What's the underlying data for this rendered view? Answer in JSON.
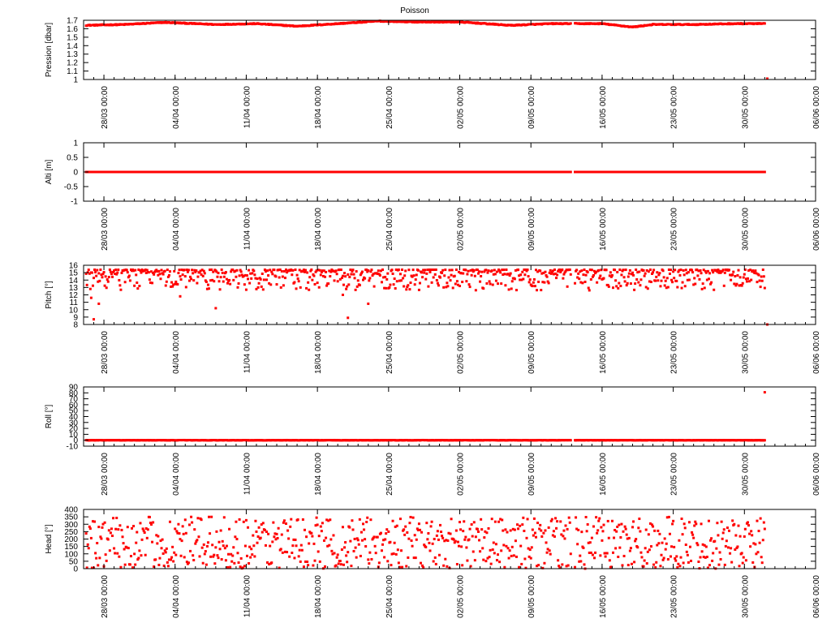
{
  "figure": {
    "title": "Poisson"
  },
  "chart_data": [
    {
      "type": "scatter",
      "ylabel": "Pression [dbar]",
      "ylim": [
        1,
        1.7
      ],
      "yticks": [
        1,
        1.1,
        1.2,
        1.3,
        1.4,
        1.5,
        1.6,
        1.7
      ],
      "grid": false,
      "color": "#ff0000",
      "x_ticks": [
        "28/03 00:00",
        "04/04 00:00",
        "11/04 00:00",
        "18/04 00:00",
        "25/04 00:00",
        "02/05 00:00",
        "09/05 00:00",
        "16/05 00:00",
        "23/05 00:00",
        "30/05 00:00",
        "06/06 00:00"
      ],
      "x_range": [
        "26/03 00:00",
        "06/06 00:00"
      ],
      "data_end": "01/06 00:00",
      "gap": [
        "13/05 00:00",
        "13/05 06:00"
      ],
      "profile": {
        "x": [
          "26/03 00:00",
          "30/03 00:00",
          "03/04 00:00",
          "08/04 00:00",
          "12/04 00:00",
          "16/04 00:00",
          "20/04 00:00",
          "24/04 00:00",
          "28/04 00:00",
          "02/05 00:00",
          "07/05 00:00",
          "11/05 00:00",
          "16/05 00:00",
          "19/05 00:00",
          "21/05 00:00",
          "25/05 00:00",
          "29/05 00:00",
          "01/06 00:00"
        ],
        "y": [
          1.64,
          1.65,
          1.675,
          1.65,
          1.66,
          1.63,
          1.66,
          1.69,
          1.68,
          1.68,
          1.64,
          1.66,
          1.66,
          1.62,
          1.65,
          1.65,
          1.66,
          1.66
        ]
      },
      "noise": 0.005,
      "outliers": [
        {
          "x": "01/06 06:00",
          "y": 1.01
        }
      ]
    },
    {
      "type": "scatter",
      "ylabel": "Alti [m]",
      "ylim": [
        -1,
        1
      ],
      "yticks": [
        -1,
        -0.5,
        0,
        0.5,
        1
      ],
      "grid": false,
      "color": "#ff0000",
      "x_ticks": [
        "28/03 00:00",
        "04/04 00:00",
        "11/04 00:00",
        "18/04 00:00",
        "25/04 00:00",
        "02/05 00:00",
        "09/05 00:00",
        "16/05 00:00",
        "23/05 00:00",
        "30/05 00:00",
        "06/06 00:00"
      ],
      "x_range": [
        "26/03 00:00",
        "06/06 00:00"
      ],
      "data_end": "01/06 00:00",
      "gap": [
        "13/05 00:00",
        "13/05 06:00"
      ],
      "profile": {
        "x": [
          "26/03 00:00",
          "01/06 00:00"
        ],
        "y": [
          0,
          0
        ]
      },
      "noise": 0,
      "outliers": []
    },
    {
      "type": "scatter",
      "ylabel": "Pitch [°]",
      "ylim": [
        8,
        16
      ],
      "yticks": [
        8,
        9,
        10,
        11,
        12,
        13,
        14,
        15,
        16
      ],
      "grid": false,
      "color": "#ff0000",
      "x_ticks": [
        "28/03 00:00",
        "04/04 00:00",
        "11/04 00:00",
        "18/04 00:00",
        "25/04 00:00",
        "02/05 00:00",
        "09/05 00:00",
        "16/05 00:00",
        "23/05 00:00",
        "30/05 00:00",
        "06/06 00:00"
      ],
      "x_range": [
        "26/03 00:00",
        "06/06 00:00"
      ],
      "data_end": "01/06 00:00",
      "gap": [
        "13/05 00:00",
        "13/05 06:00"
      ],
      "band": [
        12.6,
        15.4
      ],
      "skew": 0.45,
      "outliers": [
        {
          "x": "26/03 18:00",
          "y": 11.6
        },
        {
          "x": "27/03 00:00",
          "y": 8.7
        },
        {
          "x": "27/03 12:00",
          "y": 10.8
        },
        {
          "x": "04/04 12:00",
          "y": 11.8
        },
        {
          "x": "08/04 00:00",
          "y": 10.2
        },
        {
          "x": "20/04 12:00",
          "y": 12.0
        },
        {
          "x": "21/04 00:00",
          "y": 8.9
        },
        {
          "x": "23/04 00:00",
          "y": 10.8
        },
        {
          "x": "01/06 06:00",
          "y": 8.0
        }
      ]
    },
    {
      "type": "scatter",
      "ylabel": "Roll [°]",
      "ylim": [
        -10,
        90
      ],
      "yticks": [
        -10,
        0,
        10,
        20,
        30,
        40,
        50,
        60,
        70,
        80,
        90
      ],
      "grid": false,
      "color": "#ff0000",
      "x_ticks": [
        "28/03 00:00",
        "04/04 00:00",
        "11/04 00:00",
        "18/04 00:00",
        "25/04 00:00",
        "02/05 00:00",
        "09/05 00:00",
        "16/05 00:00",
        "23/05 00:00",
        "30/05 00:00",
        "06/06 00:00"
      ],
      "x_range": [
        "26/03 00:00",
        "06/06 00:00"
      ],
      "data_end": "01/06 00:00",
      "gap": [
        "13/05 00:00",
        "13/05 06:00"
      ],
      "profile": {
        "x": [
          "26/03 00:00",
          "01/06 00:00"
        ],
        "y": [
          0,
          0
        ]
      },
      "noise": 0.3,
      "outliers": [
        {
          "x": "01/06 00:00",
          "y": 81
        }
      ]
    },
    {
      "type": "scatter",
      "ylabel": "Head [°]",
      "ylim": [
        0,
        400
      ],
      "yticks": [
        0,
        50,
        100,
        150,
        200,
        250,
        300,
        350,
        400
      ],
      "grid": false,
      "color": "#ff0000",
      "x_ticks": [
        "28/03 00:00",
        "04/04 00:00",
        "11/04 00:00",
        "18/04 00:00",
        "25/04 00:00",
        "02/05 00:00",
        "09/05 00:00",
        "16/05 00:00",
        "23/05 00:00",
        "30/05 00:00",
        "06/06 00:00"
      ],
      "x_range": [
        "26/03 00:00",
        "06/06 00:00"
      ],
      "data_end": "01/06 00:00",
      "gap": [
        "13/05 00:00",
        "13/05 06:00"
      ],
      "band": [
        0,
        350
      ],
      "skew": 0,
      "outliers": []
    }
  ]
}
